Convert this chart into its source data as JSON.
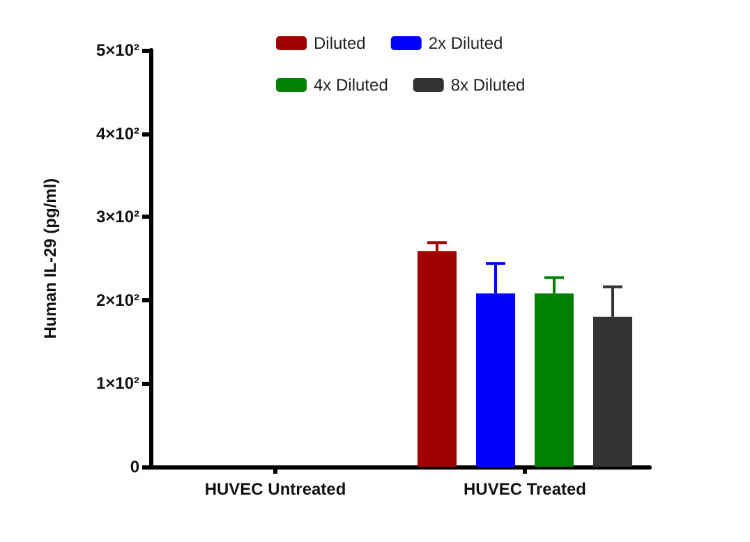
{
  "chart_data": {
    "type": "bar",
    "ylabel": "Human IL-29 (pg/ml)",
    "categories": [
      "HUVEC Untreated",
      "HUVEC Treated"
    ],
    "series": [
      {
        "name": "Diluted",
        "color": "#a00000",
        "values": [
          null,
          259
        ],
        "errors": [
          null,
          [
            259,
            269
          ]
        ]
      },
      {
        "name": "2x Diluted",
        "color": "#0000ff",
        "values": [
          null,
          208
        ],
        "errors": [
          null,
          [
            208,
            244
          ]
        ]
      },
      {
        "name": "4x Diluted",
        "color": "#008000",
        "values": [
          null,
          208
        ],
        "errors": [
          null,
          [
            208,
            227
          ]
        ]
      },
      {
        "name": "8x Diluted",
        "color": "#333333",
        "values": [
          null,
          180
        ],
        "errors": [
          null,
          [
            180,
            216
          ]
        ]
      }
    ],
    "ylim": [
      0,
      500
    ],
    "yticks": [
      0,
      {
        "value": 100,
        "label": "1×10²"
      },
      {
        "value": 200,
        "label": "2×10²"
      },
      {
        "value": 300,
        "label": "3×10²"
      },
      {
        "value": 400,
        "label": "4×10²"
      },
      {
        "value": 500,
        "label": "5×10²"
      }
    ],
    "grid": false,
    "legend": "top"
  }
}
